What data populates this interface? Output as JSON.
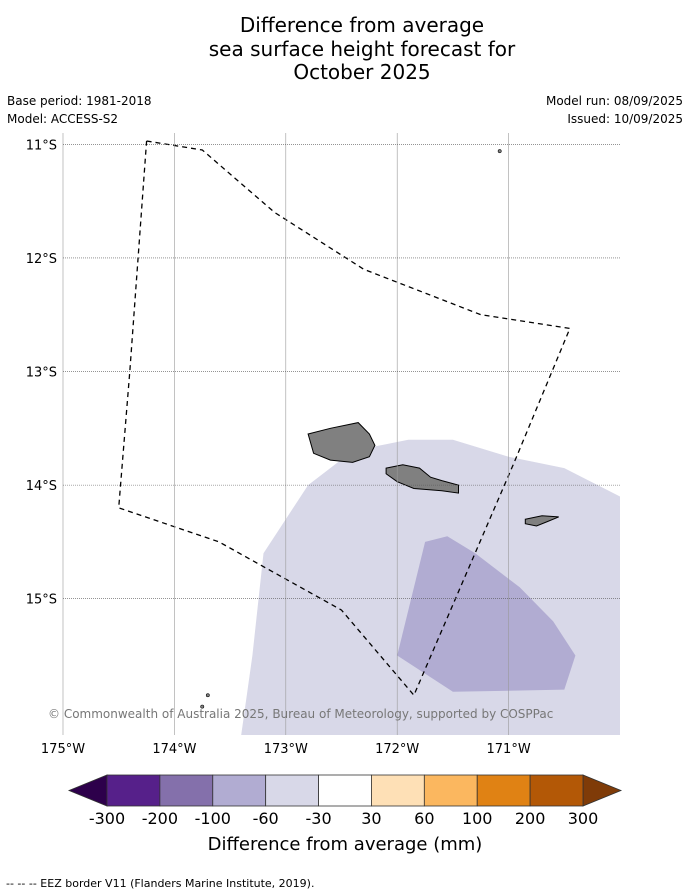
{
  "title_lines": [
    "Difference from average",
    "sea surface height forecast for",
    "October 2025"
  ],
  "meta": {
    "base_period": "Base period: 1981-2018",
    "model": "Model: ACCESS-S2",
    "model_run": "Model run: 08/09/2025",
    "issued": "Issued: 10/09/2025"
  },
  "map": {
    "lon_range": [
      -175.0,
      -170.0
    ],
    "lat_range": [
      -16.2,
      -10.9
    ],
    "lat_ticks": [
      {
        "value": -11,
        "label": "11°S"
      },
      {
        "value": -12,
        "label": "12°S"
      },
      {
        "value": -13,
        "label": "13°S"
      },
      {
        "value": -14,
        "label": "14°S"
      },
      {
        "value": -15,
        "label": "15°S"
      }
    ],
    "lon_ticks": [
      {
        "value": -175,
        "label": "175°W"
      },
      {
        "value": -174,
        "label": "174°W"
      },
      {
        "value": -173,
        "label": "173°W"
      },
      {
        "value": -172,
        "label": "172°W"
      },
      {
        "value": -171,
        "label": "171°W"
      }
    ],
    "copyright": "© Commonwealth of Australia 2025, Bureau of Meteorology, supported by COSPPac",
    "land_color": "#808080",
    "anomaly_regions": [
      {
        "bin": "-60 to -30",
        "color": "#d8d8e8",
        "polygon": [
          [
            -173.4,
            -16.2
          ],
          [
            -173.3,
            -15.5
          ],
          [
            -173.2,
            -14.6
          ],
          [
            -172.8,
            -14.0
          ],
          [
            -172.4,
            -13.7
          ],
          [
            -171.9,
            -13.6
          ],
          [
            -171.5,
            -13.6
          ],
          [
            -171.0,
            -13.75
          ],
          [
            -170.5,
            -13.85
          ],
          [
            -170.0,
            -14.1
          ],
          [
            -170.0,
            -16.2
          ]
        ]
      },
      {
        "bin": "-100 to -60",
        "color": "#b1acd2",
        "polygon": [
          [
            -172.0,
            -15.5
          ],
          [
            -171.75,
            -14.5
          ],
          [
            -171.55,
            -14.45
          ],
          [
            -171.3,
            -14.6
          ],
          [
            -170.9,
            -14.9
          ],
          [
            -170.6,
            -15.2
          ],
          [
            -170.4,
            -15.5
          ],
          [
            -170.5,
            -15.8
          ],
          [
            -171.5,
            -15.82
          ]
        ]
      }
    ],
    "eez_border": [
      [
        -174.25,
        -10.97
      ],
      [
        -173.75,
        -11.05
      ],
      [
        -173.1,
        -11.6
      ],
      [
        -172.3,
        -12.1
      ],
      [
        -171.25,
        -12.5
      ],
      [
        -170.45,
        -12.62
      ],
      [
        -170.95,
        -13.8
      ],
      [
        -171.85,
        -15.85
      ],
      [
        -172.5,
        -15.1
      ],
      [
        -173.6,
        -14.5
      ],
      [
        -174.5,
        -14.2
      ],
      [
        -174.4,
        -13.0
      ],
      [
        -174.25,
        -10.97
      ]
    ],
    "islands": [
      {
        "name": "Savai'i",
        "polygon": [
          [
            -172.8,
            -13.55
          ],
          [
            -172.6,
            -13.5
          ],
          [
            -172.35,
            -13.45
          ],
          [
            -172.25,
            -13.55
          ],
          [
            -172.2,
            -13.65
          ],
          [
            -172.25,
            -13.75
          ],
          [
            -172.4,
            -13.8
          ],
          [
            -172.6,
            -13.78
          ],
          [
            -172.75,
            -13.72
          ]
        ]
      },
      {
        "name": "Upolu",
        "polygon": [
          [
            -172.1,
            -13.85
          ],
          [
            -171.95,
            -13.82
          ],
          [
            -171.8,
            -13.85
          ],
          [
            -171.7,
            -13.93
          ],
          [
            -171.6,
            -13.96
          ],
          [
            -171.45,
            -14.0
          ],
          [
            -171.45,
            -14.07
          ],
          [
            -171.6,
            -14.05
          ],
          [
            -171.85,
            -14.03
          ],
          [
            -172.0,
            -13.97
          ],
          [
            -172.1,
            -13.9
          ]
        ]
      },
      {
        "name": "Tutuila",
        "polygon": [
          [
            -170.85,
            -14.3
          ],
          [
            -170.7,
            -14.27
          ],
          [
            -170.55,
            -14.28
          ],
          [
            -170.65,
            -14.32
          ],
          [
            -170.75,
            -14.36
          ],
          [
            -170.85,
            -14.34
          ]
        ]
      }
    ],
    "small_islets": [
      [
        -171.08,
        -11.06
      ],
      [
        -173.7,
        -15.85
      ],
      [
        -173.75,
        -15.95
      ]
    ]
  },
  "colorbar": {
    "bins": [
      {
        "color": "#56208a"
      },
      {
        "color": "#8470ab"
      },
      {
        "color": "#b1acd2"
      },
      {
        "color": "#d8d8e8"
      },
      {
        "color": "#ffffff"
      },
      {
        "color": "#fee0b6"
      },
      {
        "color": "#fbb75f"
      },
      {
        "color": "#e08214"
      },
      {
        "color": "#b35806"
      }
    ],
    "under_color": "#2d004b",
    "over_color": "#7f3b08",
    "tick_labels": [
      "-300",
      "-200",
      "-100",
      "-60",
      "-30",
      "30",
      "60",
      "100",
      "200",
      "300"
    ],
    "label": "Difference from average (mm)"
  },
  "footer": "--  --  -- EEZ border V11 (Flanders Marine Institute, 2019)."
}
